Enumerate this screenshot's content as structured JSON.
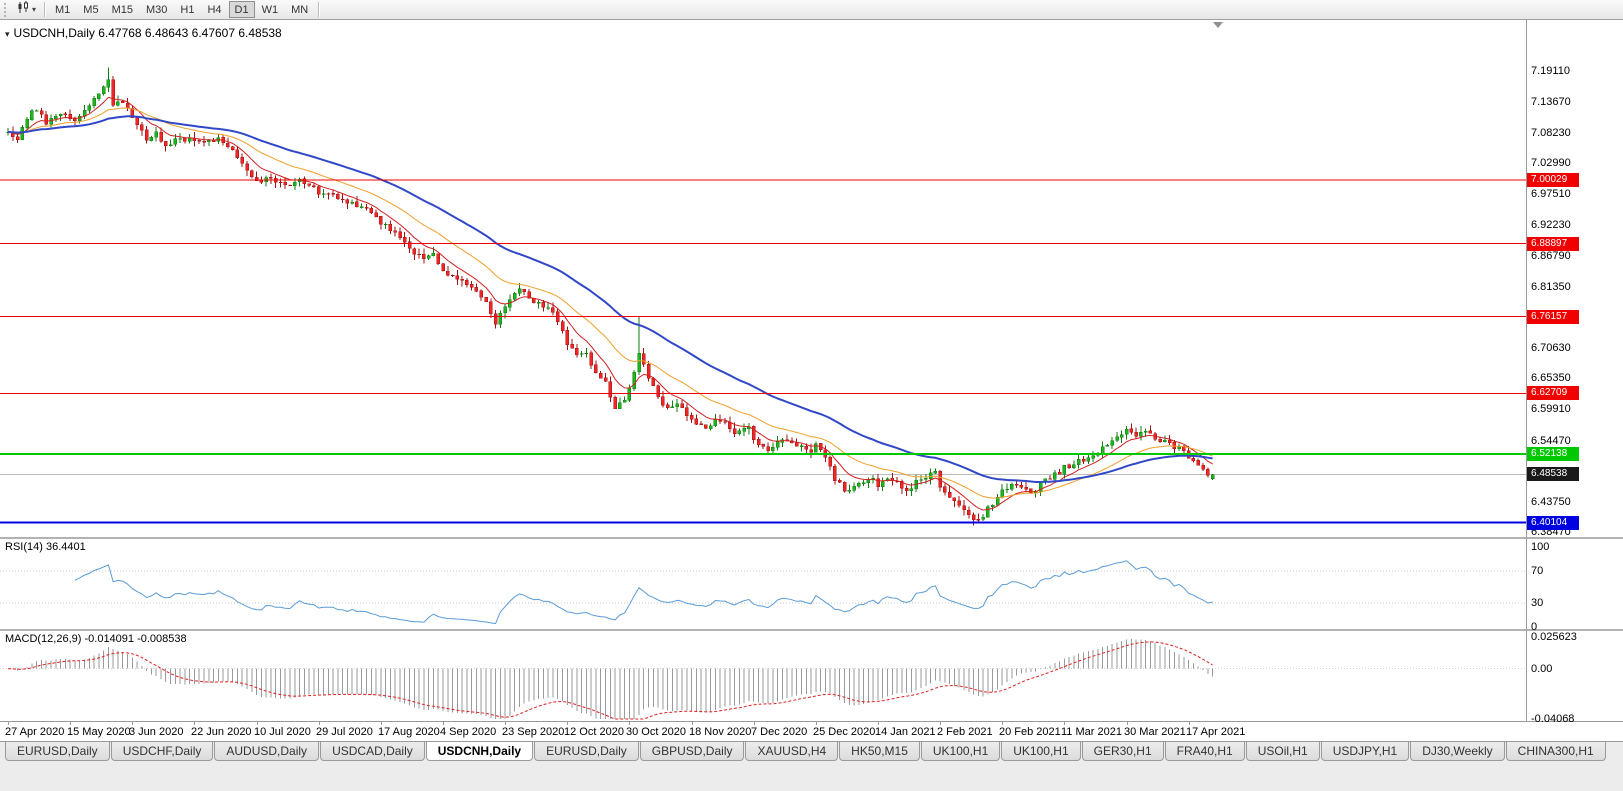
{
  "toolbar": {
    "timeframes": [
      "M1",
      "M5",
      "M15",
      "M30",
      "H1",
      "H4",
      "D1",
      "W1",
      "MN"
    ],
    "active_timeframe": "D1",
    "chart_type_caret": "▾"
  },
  "chart": {
    "collapse_arrow": "▾",
    "title_text": "USDCNH,Daily",
    "ohlc_text": "6.47768 6.48643 6.47607 6.48538"
  },
  "chart_data": {
    "type": "candlestick",
    "title": "USDCNH,Daily",
    "symbol": "USDCNH",
    "timeframe": "Daily",
    "grid": false,
    "last_ohlc": {
      "open": 6.47768,
      "high": 6.48643,
      "low": 6.47607,
      "close": 6.48538
    },
    "current_price": {
      "value": 6.48538,
      "label": "6.48538"
    },
    "price_range": {
      "top": 7.2803,
      "bottom": 6.376
    },
    "y_axis_ticks": [
      "7.19110",
      "7.13670",
      "7.08230",
      "7.02990",
      "6.97510",
      "6.92230",
      "6.86790",
      "6.81350",
      "6.76070",
      "6.70630",
      "6.65350",
      "6.59910",
      "6.54470",
      "6.49030",
      "6.43750",
      "6.38470"
    ],
    "x_axis_dates": [
      "27 Apr 2020",
      "15 May 2020",
      "3 Jun 2020",
      "22 Jun 2020",
      "10 Jul 2020",
      "29 Jul 2020",
      "17 Aug 2020",
      "4 Sep 2020",
      "23 Sep 2020",
      "12 Oct 2020",
      "30 Oct 2020",
      "18 Nov 2020",
      "7 Dec 2020",
      "25 Dec 2020",
      "14 Jan 2021",
      "2 Feb 2021",
      "20 Feb 2021",
      "11 Mar 2021",
      "30 Mar 2021",
      "17 Apr 2021"
    ],
    "candles_per_date_tick": 13,
    "num_candles": 253,
    "horizontal_lines": [
      {
        "value": 7.00029,
        "label": "7.00029",
        "color": "#f00000",
        "width": 1,
        "type": "resistance"
      },
      {
        "value": 6.88897,
        "label": "6.88897",
        "color": "#f00000",
        "width": 1,
        "type": "resistance"
      },
      {
        "value": 6.76157,
        "label": "6.76157",
        "color": "#f00000",
        "width": 1,
        "type": "resistance"
      },
      {
        "value": 6.62709,
        "label": "6.62709",
        "color": "#f00000",
        "width": 1,
        "type": "resistance"
      },
      {
        "value": 6.52138,
        "label": "6.52138",
        "color": "#00c800",
        "width": 2,
        "type": "support"
      },
      {
        "value": 6.40104,
        "label": "6.40104",
        "color": "#0000e0",
        "width": 2,
        "type": "support"
      }
    ],
    "moving_averages": [
      {
        "period": 8,
        "color": "#d02020",
        "width": 1
      },
      {
        "period": 21,
        "color": "#f0a028",
        "width": 1
      },
      {
        "period": 45,
        "color": "#3048c8",
        "width": 2
      }
    ],
    "indicators": {
      "rsi": {
        "label": "RSI(14)",
        "value_text": "36.4401",
        "period": 14,
        "axis_labels": [
          "100",
          "70",
          "30",
          "0"
        ],
        "levels": [
          70,
          30
        ],
        "color": "#5b9bd5"
      },
      "macd": {
        "label": "MACD(12,26,9)",
        "value_text": "-0.014091 -0.008538",
        "fast": 12,
        "slow": 26,
        "signal": 9,
        "axis_labels": [
          "0.025623",
          "0.00",
          "-0.04068"
        ],
        "scale_max": 0.025623,
        "scale_min": -0.04068,
        "hist_color": "#9a9a9a",
        "signal_color": "#e02020"
      }
    },
    "colors": {
      "background": "#ffffff",
      "axis_text": "#000000",
      "up": "#1fb41f",
      "up_edge": "#0f7d0f",
      "down": "#f02525",
      "down_edge": "#a31212",
      "bid_line": "#bcbcbc",
      "current_price_badge": "#1a1a1a"
    },
    "price_keypoints": [
      [
        0,
        7.085
      ],
      [
        2,
        7.075
      ],
      [
        4,
        7.11
      ],
      [
        6,
        7.125
      ],
      [
        8,
        7.1
      ],
      [
        11,
        7.12
      ],
      [
        14,
        7.105
      ],
      [
        17,
        7.13
      ],
      [
        19,
        7.155
      ],
      [
        21,
        7.175
      ],
      [
        22,
        7.13
      ],
      [
        24,
        7.14
      ],
      [
        27,
        7.1
      ],
      [
        29,
        7.07
      ],
      [
        31,
        7.085
      ],
      [
        33,
        7.06
      ],
      [
        36,
        7.075
      ],
      [
        40,
        7.065
      ],
      [
        44,
        7.073
      ],
      [
        47,
        7.05
      ],
      [
        50,
        7.02
      ],
      [
        52,
        6.998
      ],
      [
        55,
        7.005
      ],
      [
        58,
        6.99
      ],
      [
        61,
        7.0
      ],
      [
        64,
        6.988
      ],
      [
        65,
        6.975
      ],
      [
        68,
        6.972
      ],
      [
        71,
        6.96
      ],
      [
        74,
        6.955
      ],
      [
        78,
        6.925
      ],
      [
        81,
        6.908
      ],
      [
        84,
        6.878
      ],
      [
        87,
        6.863
      ],
      [
        89,
        6.872
      ],
      [
        91,
        6.84
      ],
      [
        94,
        6.83
      ],
      [
        97,
        6.815
      ],
      [
        100,
        6.788
      ],
      [
        102,
        6.752
      ],
      [
        104,
        6.78
      ],
      [
        107,
        6.808
      ],
      [
        110,
        6.79
      ],
      [
        113,
        6.778
      ],
      [
        116,
        6.738
      ],
      [
        117,
        6.712
      ],
      [
        119,
        6.695
      ],
      [
        121,
        6.7
      ],
      [
        123,
        6.66
      ],
      [
        125,
        6.648
      ],
      [
        127,
        6.6
      ],
      [
        129,
        6.618
      ],
      [
        130,
        6.638
      ],
      [
        132,
        6.7
      ],
      [
        134,
        6.658
      ],
      [
        136,
        6.618
      ],
      [
        138,
        6.598
      ],
      [
        140,
        6.61
      ],
      [
        143,
        6.578
      ],
      [
        146,
        6.568
      ],
      [
        149,
        6.582
      ],
      [
        152,
        6.558
      ],
      [
        155,
        6.568
      ],
      [
        156,
        6.542
      ],
      [
        159,
        6.528
      ],
      [
        162,
        6.548
      ],
      [
        165,
        6.538
      ],
      [
        168,
        6.528
      ],
      [
        169,
        6.538
      ],
      [
        171,
        6.518
      ],
      [
        173,
        6.478
      ],
      [
        175,
        6.458
      ],
      [
        178,
        6.468
      ],
      [
        181,
        6.478
      ],
      [
        182,
        6.468
      ],
      [
        185,
        6.478
      ],
      [
        188,
        6.458
      ],
      [
        191,
        6.478
      ],
      [
        194,
        6.488
      ],
      [
        195,
        6.462
      ],
      [
        197,
        6.442
      ],
      [
        199,
        6.428
      ],
      [
        201,
        6.412
      ],
      [
        203,
        6.405
      ],
      [
        205,
        6.425
      ],
      [
        208,
        6.458
      ],
      [
        211,
        6.468
      ],
      [
        214,
        6.452
      ],
      [
        217,
        6.478
      ],
      [
        220,
        6.488
      ],
      [
        221,
        6.498
      ],
      [
        224,
        6.508
      ],
      [
        227,
        6.518
      ],
      [
        230,
        6.538
      ],
      [
        232,
        6.552
      ],
      [
        234,
        6.562
      ],
      [
        236,
        6.552
      ],
      [
        238,
        6.558
      ],
      [
        240,
        6.548
      ],
      [
        243,
        6.538
      ],
      [
        246,
        6.528
      ],
      [
        247,
        6.518
      ],
      [
        249,
        6.498
      ],
      [
        251,
        6.488
      ],
      [
        252,
        6.485
      ]
    ],
    "overrides": [
      {
        "i": 21,
        "h": 7.197
      },
      {
        "i": 132,
        "h": 6.7615
      },
      {
        "i": 203,
        "l": 6.401
      },
      {
        "i": 252,
        "o": 6.47768,
        "h": 6.48643,
        "l": 6.47607,
        "c": 6.48538
      }
    ]
  },
  "tabs": {
    "items": [
      "EURUSD,Daily",
      "USDCHF,Daily",
      "AUDUSD,Daily",
      "USDCAD,Daily",
      "USDCNH,Daily",
      "EURUSD,Daily",
      "GBPUSD,Daily",
      "XAUUSD,H4",
      "HK50,M15",
      "UK100,H1",
      "UK100,H1",
      "GER30,H1",
      "FRA40,H1",
      "USOil,H1",
      "USDJPY,H1",
      "DJ30,Weekly",
      "CHINA300,H1"
    ],
    "active_index": 4
  }
}
